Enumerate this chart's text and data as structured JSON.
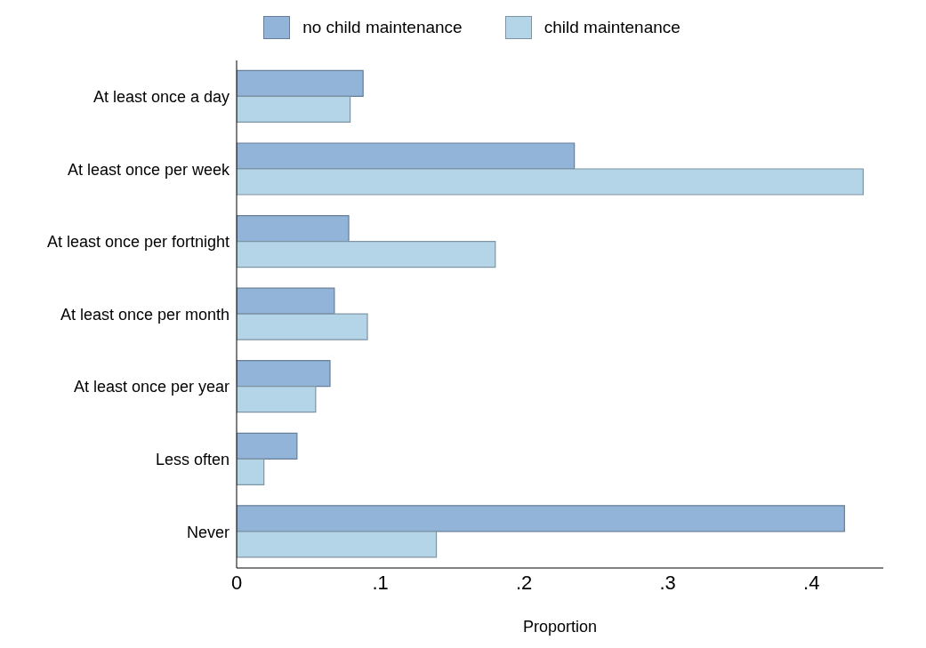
{
  "chart_data": {
    "type": "bar",
    "orientation": "horizontal",
    "xlabel": "Proportion",
    "categories": [
      "At least once a day",
      "At least once per week",
      "At least once per fortnight",
      "At least once per month",
      "At least once per year",
      "Less often",
      "Never"
    ],
    "series": [
      {
        "name": "no child maintenance",
        "color": "#92b4d8",
        "values": [
          0.088,
          0.235,
          0.078,
          0.068,
          0.065,
          0.042,
          0.423
        ]
      },
      {
        "name": "child maintenance",
        "color": "#b4d4e8",
        "values": [
          0.079,
          0.436,
          0.18,
          0.091,
          0.055,
          0.019,
          0.139
        ]
      }
    ],
    "xticks": [
      {
        "value": 0,
        "label": "0"
      },
      {
        "value": 0.1,
        "label": ".1"
      },
      {
        "value": 0.2,
        "label": ".2"
      },
      {
        "value": 0.3,
        "label": ".3"
      },
      {
        "value": 0.4,
        "label": ".4"
      }
    ],
    "xlim": [
      0,
      0.45
    ],
    "legend": "top",
    "grid": false
  }
}
